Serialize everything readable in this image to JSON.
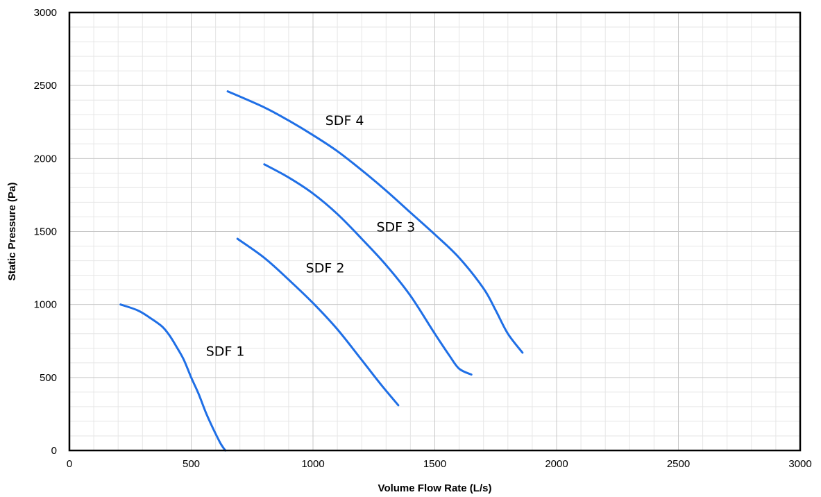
{
  "chart_data": {
    "type": "line",
    "title": "",
    "xlabel": "Volume Flow Rate (L/s)",
    "ylabel": "Static Pressure (Pa)",
    "xlim": [
      0,
      3000
    ],
    "ylim": [
      0,
      3000
    ],
    "x_ticks": [
      "0",
      "500",
      "1000",
      "1500",
      "2000",
      "2500",
      "3000"
    ],
    "y_ticks": [
      "0",
      "500",
      "1000",
      "1500",
      "2000",
      "2500",
      "3000"
    ],
    "x_tick_values": [
      0,
      500,
      1000,
      1500,
      2000,
      2500,
      3000
    ],
    "y_tick_values": [
      0,
      500,
      1000,
      1500,
      2000,
      2500,
      3000
    ],
    "minor_step": 100,
    "grid": true,
    "line_color": "#1f6fe6",
    "series": [
      {
        "name": "SDF 1",
        "x": [
          210,
          280,
          330,
          380,
          410,
          440,
          470,
          500,
          530,
          560,
          590,
          620,
          640
        ],
        "y": [
          1000,
          960,
          910,
          850,
          790,
          710,
          620,
          500,
          390,
          260,
          150,
          50,
          0
        ]
      },
      {
        "name": "SDF 2",
        "x": [
          690,
          800,
          900,
          1000,
          1100,
          1200,
          1280,
          1350
        ],
        "y": [
          1450,
          1320,
          1170,
          1010,
          830,
          620,
          450,
          310
        ]
      },
      {
        "name": "SDF 3",
        "x": [
          800,
          900,
          1000,
          1100,
          1200,
          1300,
          1400,
          1500,
          1560,
          1600,
          1650
        ],
        "y": [
          1960,
          1870,
          1760,
          1620,
          1450,
          1270,
          1060,
          800,
          650,
          560,
          520
        ]
      },
      {
        "name": "SDF 4",
        "x": [
          650,
          800,
          900,
          1000,
          1100,
          1200,
          1300,
          1400,
          1500,
          1600,
          1700,
          1750,
          1800,
          1860
        ],
        "y": [
          2460,
          2350,
          2260,
          2160,
          2050,
          1920,
          1780,
          1630,
          1480,
          1320,
          1110,
          960,
          800,
          670
        ]
      }
    ],
    "annotations": [
      {
        "text": "SDF 1",
        "x": 640,
        "y": 650
      },
      {
        "text": "SDF 2",
        "x": 1050,
        "y": 1220
      },
      {
        "text": "SDF 3",
        "x": 1340,
        "y": 1500
      },
      {
        "text": "SDF 4",
        "x": 1130,
        "y": 2230
      }
    ]
  }
}
